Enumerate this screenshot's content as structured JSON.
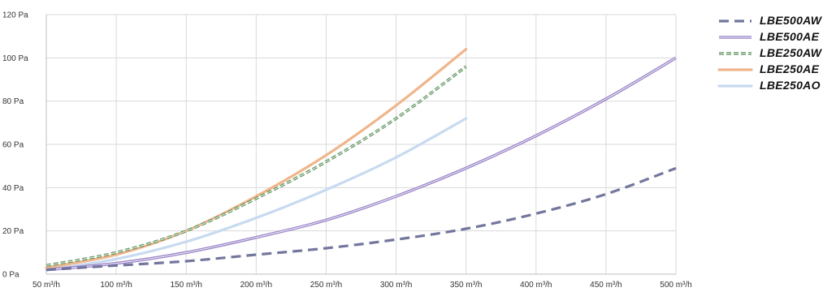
{
  "chart_data": {
    "type": "line",
    "title": "",
    "xlabel": "",
    "ylabel": "",
    "xlim": [
      50,
      500
    ],
    "ylim": [
      0,
      120
    ],
    "x_ticks": [
      50,
      100,
      150,
      200,
      250,
      300,
      350,
      400,
      450,
      500
    ],
    "x_tick_labels": [
      "50 m³/h",
      "100 m³/h",
      "150 m³/h",
      "200 m³/h",
      "250 m³/h",
      "300 m³/h",
      "350 m³/h",
      "400 m³/h",
      "450 m³/h",
      "500 m³/h"
    ],
    "y_ticks": [
      0,
      20,
      40,
      60,
      80,
      100,
      120
    ],
    "y_tick_labels": [
      "0 Pa",
      "20 Pa",
      "40 Pa",
      "60 Pa",
      "80 Pa",
      "100 Pa",
      "120 Pa"
    ],
    "grid": true,
    "legend_position": "top-right",
    "series": [
      {
        "name": "LBE500AW",
        "color": "#6c6f98",
        "style": "dashed",
        "x": [
          50,
          100,
          150,
          200,
          250,
          300,
          350,
          400,
          450,
          500
        ],
        "y": [
          2,
          4,
          6,
          9,
          12,
          16,
          21,
          28,
          37,
          49
        ]
      },
      {
        "name": "LBE500AE",
        "color": "#9b86c8",
        "style": "double",
        "x": [
          50,
          100,
          150,
          200,
          250,
          300,
          350,
          400,
          450,
          500
        ],
        "y": [
          2,
          5,
          10,
          17,
          25,
          36,
          49,
          64,
          81,
          100
        ]
      },
      {
        "name": "LBE250AW",
        "color": "#5e935e",
        "style": "double-dashed",
        "x": [
          50,
          100,
          150,
          200,
          250,
          300,
          350
        ],
        "y": [
          4,
          10,
          20,
          35,
          52,
          72,
          96
        ]
      },
      {
        "name": "LBE250AE",
        "color": "#f0b58a",
        "style": "solid",
        "x": [
          50,
          100,
          150,
          200,
          250,
          300,
          350
        ],
        "y": [
          3,
          9,
          20,
          36,
          55,
          78,
          104
        ]
      },
      {
        "name": "LBE250AO",
        "color": "#c7daf0",
        "style": "solid",
        "x": [
          50,
          100,
          150,
          200,
          250,
          300,
          350
        ],
        "y": [
          2,
          7,
          15,
          26,
          39,
          54,
          72
        ]
      }
    ]
  }
}
